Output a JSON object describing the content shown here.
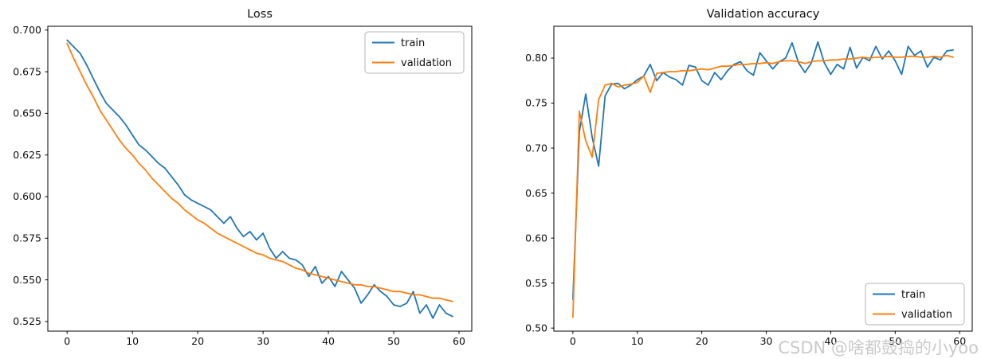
{
  "watermark": {
    "text": "CSDN @啥都鼓捣的小yoo"
  },
  "colors": {
    "train": "#1f77b4",
    "validation": "#ff7f0e",
    "spine": "#000000",
    "watermark": "#c6c6c6"
  },
  "chart_data": [
    {
      "type": "line",
      "title": "Loss",
      "xlabel": "",
      "ylabel": "",
      "xlim": [
        -2.95,
        61.95
      ],
      "ylim": [
        0.5192,
        0.7023
      ],
      "x_ticks": [
        0,
        10,
        20,
        30,
        40,
        50,
        60
      ],
      "x_tick_labels": [
        "0",
        "10",
        "20",
        "30",
        "40",
        "50",
        "60"
      ],
      "y_ticks": [
        0.525,
        0.55,
        0.575,
        0.6,
        0.625,
        0.65,
        0.675,
        0.7
      ],
      "y_tick_labels": [
        "0.525",
        "0.550",
        "0.575",
        "0.600",
        "0.625",
        "0.650",
        "0.675",
        "0.700"
      ],
      "grid": false,
      "legend_position": "upper right",
      "x_unit": "epoch (index 0-59)",
      "series": [
        {
          "name": "train",
          "color": "#1f77b4",
          "values": [
            0.694,
            0.69,
            0.686,
            0.679,
            0.671,
            0.663,
            0.656,
            0.652,
            0.648,
            0.643,
            0.637,
            0.631,
            0.628,
            0.624,
            0.62,
            0.617,
            0.612,
            0.607,
            0.601,
            0.598,
            0.596,
            0.594,
            0.592,
            0.588,
            0.584,
            0.588,
            0.581,
            0.576,
            0.579,
            0.574,
            0.578,
            0.569,
            0.563,
            0.567,
            0.563,
            0.562,
            0.559,
            0.552,
            0.558,
            0.548,
            0.552,
            0.546,
            0.555,
            0.55,
            0.545,
            0.536,
            0.541,
            0.547,
            0.543,
            0.54,
            0.535,
            0.534,
            0.536,
            0.543,
            0.53,
            0.535,
            0.527,
            0.535,
            0.53,
            0.528
          ]
        },
        {
          "name": "validation",
          "color": "#ff7f0e",
          "values": [
            0.692,
            0.683,
            0.675,
            0.667,
            0.66,
            0.652,
            0.646,
            0.64,
            0.634,
            0.629,
            0.625,
            0.62,
            0.616,
            0.611,
            0.607,
            0.603,
            0.599,
            0.596,
            0.592,
            0.589,
            0.586,
            0.584,
            0.581,
            0.578,
            0.576,
            0.574,
            0.572,
            0.57,
            0.568,
            0.566,
            0.565,
            0.563,
            0.562,
            0.561,
            0.559,
            0.557,
            0.556,
            0.554,
            0.553,
            0.552,
            0.551,
            0.55,
            0.549,
            0.548,
            0.547,
            0.547,
            0.546,
            0.546,
            0.545,
            0.544,
            0.543,
            0.543,
            0.542,
            0.541,
            0.541,
            0.54,
            0.539,
            0.539,
            0.538,
            0.537
          ]
        }
      ]
    },
    {
      "type": "line",
      "title": "Validation accuracy",
      "xlabel": "",
      "ylabel": "",
      "xlim": [
        -2.95,
        61.95
      ],
      "ylim": [
        0.4966,
        0.8354
      ],
      "x_ticks": [
        0,
        10,
        20,
        30,
        40,
        50,
        60
      ],
      "x_tick_labels": [
        "0",
        "10",
        "20",
        "30",
        "40",
        "50",
        "60"
      ],
      "y_ticks": [
        0.5,
        0.55,
        0.6,
        0.65,
        0.7,
        0.75,
        0.8
      ],
      "y_tick_labels": [
        "0.50",
        "0.55",
        "0.60",
        "0.65",
        "0.70",
        "0.75",
        "0.80"
      ],
      "grid": false,
      "legend_position": "lower right",
      "x_unit": "epoch (index 0-59)",
      "series": [
        {
          "name": "train",
          "color": "#1f77b4",
          "values": [
            0.532,
            0.718,
            0.76,
            0.712,
            0.68,
            0.758,
            0.771,
            0.772,
            0.766,
            0.77,
            0.776,
            0.78,
            0.793,
            0.775,
            0.784,
            0.779,
            0.776,
            0.77,
            0.792,
            0.79,
            0.775,
            0.77,
            0.784,
            0.776,
            0.786,
            0.793,
            0.796,
            0.786,
            0.781,
            0.806,
            0.797,
            0.788,
            0.796,
            0.8,
            0.817,
            0.795,
            0.784,
            0.795,
            0.818,
            0.795,
            0.782,
            0.793,
            0.788,
            0.812,
            0.789,
            0.801,
            0.797,
            0.813,
            0.799,
            0.808,
            0.797,
            0.782,
            0.813,
            0.803,
            0.808,
            0.79,
            0.801,
            0.798,
            0.808,
            0.809
          ]
        },
        {
          "name": "validation",
          "color": "#ff7f0e",
          "values": [
            0.512,
            0.741,
            0.708,
            0.69,
            0.754,
            0.77,
            0.772,
            0.768,
            0.77,
            0.771,
            0.773,
            0.78,
            0.762,
            0.783,
            0.784,
            0.785,
            0.785,
            0.786,
            0.786,
            0.787,
            0.788,
            0.787,
            0.789,
            0.791,
            0.791,
            0.792,
            0.793,
            0.793,
            0.794,
            0.794,
            0.795,
            0.794,
            0.796,
            0.797,
            0.797,
            0.796,
            0.794,
            0.796,
            0.797,
            0.797,
            0.798,
            0.798,
            0.799,
            0.799,
            0.8,
            0.801,
            0.8,
            0.801,
            0.801,
            0.802,
            0.801,
            0.801,
            0.802,
            0.802,
            0.801,
            0.801,
            0.802,
            0.801,
            0.803,
            0.801
          ]
        }
      ]
    }
  ]
}
